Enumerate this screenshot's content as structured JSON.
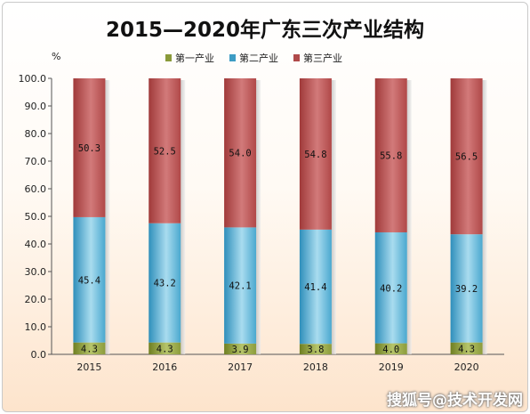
{
  "chart_data": {
    "type": "bar",
    "stacked": true,
    "title": "2015—2020年广东三次产业结构",
    "ylabel": "%",
    "ylim": [
      0,
      100
    ],
    "yticks": [
      "0.0",
      "10.0",
      "20.0",
      "30.0",
      "40.0",
      "50.0",
      "60.0",
      "70.0",
      "80.0",
      "90.0",
      "100.0"
    ],
    "categories": [
      "2015",
      "2016",
      "2017",
      "2018",
      "2019",
      "2020"
    ],
    "legend_position": "top",
    "series": [
      {
        "name": "第一产业",
        "color": "#8a9a3a",
        "values": [
          4.3,
          4.3,
          3.9,
          3.8,
          4.0,
          4.3
        ],
        "labels": [
          "4.3",
          "4.3",
          "3.9",
          "3.8",
          "4.0",
          "4.3"
        ]
      },
      {
        "name": "第二产业",
        "color": "#3d9cc4",
        "values": [
          45.4,
          43.2,
          42.1,
          41.4,
          40.2,
          39.2
        ],
        "labels": [
          "45.4",
          "43.2",
          "42.1",
          "41.4",
          "40.2",
          "39.2"
        ]
      },
      {
        "name": "第三产业",
        "color": "#b04a4a",
        "values": [
          50.3,
          52.5,
          54.0,
          54.8,
          55.8,
          56.5
        ],
        "labels": [
          "50.3",
          "52.5",
          "54.0",
          "54.8",
          "55.8",
          "56.5"
        ]
      }
    ]
  },
  "watermark": "搜狐号@技术开发网"
}
